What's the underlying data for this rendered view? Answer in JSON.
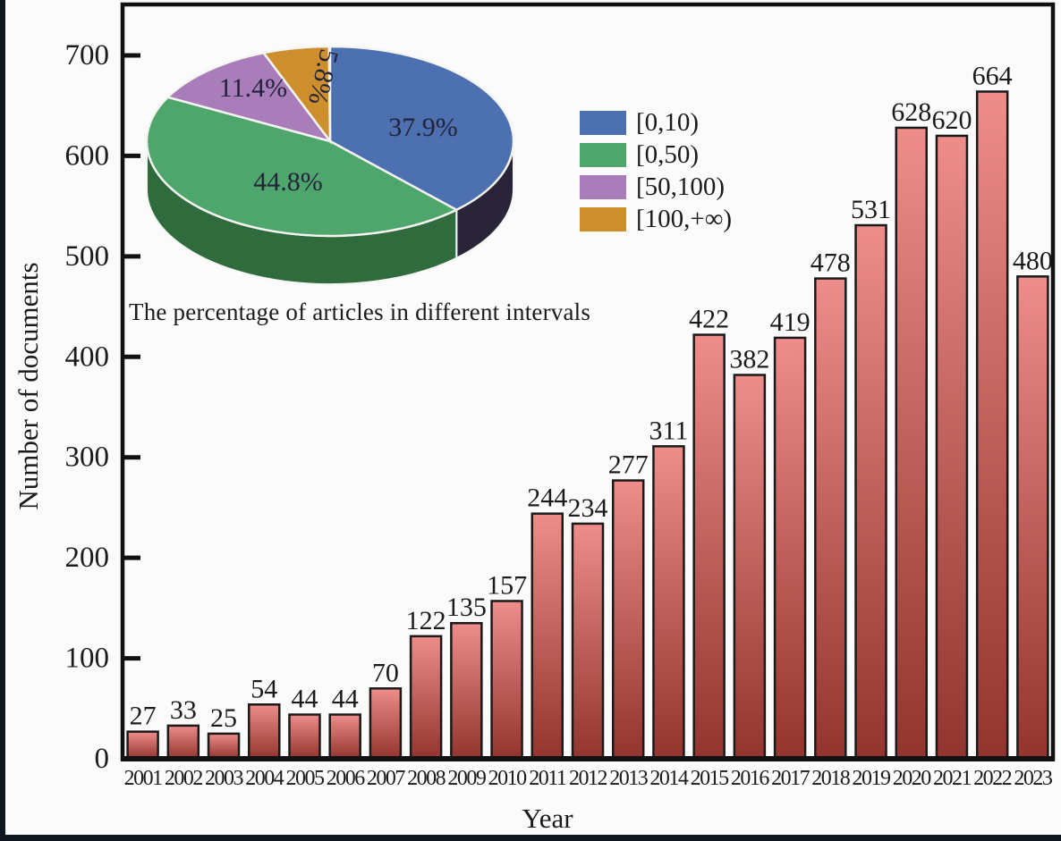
{
  "figure": {
    "y_axis_title": "Number of documents",
    "x_axis_title": "Year"
  },
  "chart_data": [
    {
      "type": "bar",
      "title": "",
      "xlabel": "Year",
      "ylabel": "Number of documents",
      "categories": [
        "2001",
        "2002",
        "2003",
        "2004",
        "2005",
        "2006",
        "2007",
        "2008",
        "2009",
        "2010",
        "2011",
        "2012",
        "2013",
        "2014",
        "2015",
        "2016",
        "2017",
        "2018",
        "2019",
        "2020",
        "2021",
        "2022",
        "2023"
      ],
      "values": [
        27,
        33,
        25,
        54,
        44,
        44,
        70,
        122,
        135,
        157,
        244,
        234,
        277,
        311,
        422,
        382,
        419,
        478,
        531,
        628,
        620,
        664,
        480
      ],
      "ylim": [
        0,
        750
      ],
      "yticks": [
        0,
        100,
        200,
        300,
        400,
        500,
        600,
        700
      ],
      "grid": "off",
      "bar_value_labels": "shown above each bar",
      "bar_gradient": {
        "top": "#ee8d89",
        "bottom": "#93342e"
      },
      "bar_stroke": "#1a1a1a"
    },
    {
      "type": "pie",
      "style": "3d",
      "title": "The percentage of articles in different intervals",
      "direction": "clockwise",
      "start_angle": "12 o'clock",
      "legend_position": "right of pie",
      "slices": [
        {
          "label": "[0,10)",
          "value_pct": 37.9,
          "display": "37.9%",
          "color": "#4d70b0",
          "side_color": "#2a2438"
        },
        {
          "label": "[0,50)",
          "value_pct": 44.8,
          "display": "44.8%",
          "color": "#4fa66c",
          "side_color": "#2f6b3d"
        },
        {
          "label": "[50,100)",
          "value_pct": 11.4,
          "display": "11.4%",
          "color": "#a87db9",
          "side_color": "#6b4f7a"
        },
        {
          "label": "[100,+∞)",
          "value_pct": 5.8,
          "display": "5.8%",
          "color": "#cd8e2d",
          "side_color": "#8a5f1d"
        }
      ]
    }
  ]
}
